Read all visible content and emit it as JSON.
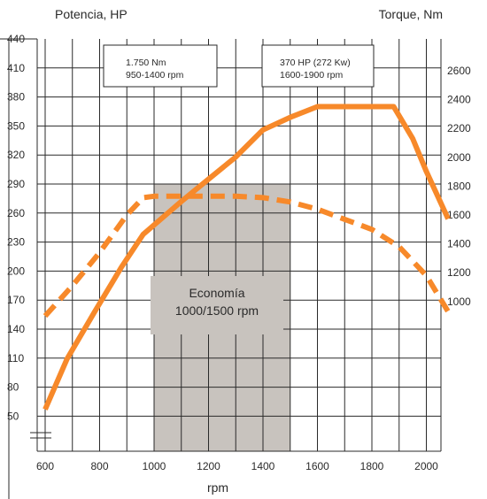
{
  "chart_data": {
    "type": "line",
    "xlabel": "rpm",
    "y_left_label": "Potencia, HP",
    "y_right_label": "Torque, Nm",
    "x_ticks": [
      600,
      800,
      1000,
      1200,
      1400,
      1600,
      1800,
      2000
    ],
    "y_left_ticks": [
      50,
      80,
      110,
      140,
      170,
      200,
      230,
      260,
      290,
      320,
      350,
      380,
      410,
      440
    ],
    "y_right_ticks": [
      1000,
      1200,
      1400,
      1600,
      1800,
      2000,
      2200,
      2400,
      2600
    ],
    "xlim": [
      550,
      2090
    ],
    "ylim_left": [
      50,
      440
    ],
    "grid": true,
    "series": [
      {
        "axis": "left",
        "style": "solid",
        "color": "#f7892a",
        "x": [
          600,
          680,
          780,
          880,
          960,
          1100,
          1200,
          1300,
          1400,
          1500,
          1600,
          1700,
          1800,
          1880,
          1950,
          2000,
          2080
        ],
        "y": [
          57,
          109,
          157,
          204,
          238,
          272,
          295,
          318,
          346,
          359,
          370,
          370,
          370,
          370,
          337,
          303,
          254
        ]
      },
      {
        "axis": "right",
        "style": "dashed",
        "color": "#f7892a",
        "x": [
          600,
          700,
          800,
          900,
          960,
          1000,
          1100,
          1200,
          1300,
          1400,
          1500,
          1600,
          1700,
          1800,
          1900,
          2000,
          2080
        ],
        "y": [
          900,
          1110,
          1340,
          1600,
          1720,
          1730,
          1730,
          1730,
          1730,
          1720,
          1690,
          1640,
          1570,
          1500,
          1380,
          1180,
          930
        ]
      }
    ],
    "annotations": {
      "torque_box": [
        "1.750 Nm",
        "950-1400 rpm"
      ],
      "power_box": [
        "370 HP (272 Kw)",
        "1600-1900 rpm"
      ],
      "economy": [
        "Economía",
        "1000/1500 rpm"
      ]
    },
    "economy_range": [
      1000,
      1500
    ],
    "colors": {
      "curve": "#f7892a",
      "economy_band": "#c8c3be",
      "grid": "#2a2a2a"
    }
  }
}
